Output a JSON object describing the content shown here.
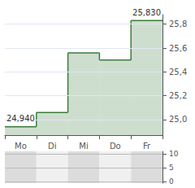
{
  "chart_data": [
    {
      "type": "step",
      "categories": [
        "Mo",
        "Di",
        "Mi",
        "Do",
        "Fr"
      ],
      "values": [
        24.94,
        25.06,
        25.56,
        25.5,
        25.83
      ],
      "color": "#3a7d3a",
      "ylim": [
        24.87,
        25.88
      ],
      "yticks": [
        {
          "value": 25.0,
          "label": "25,0"
        },
        {
          "value": 25.2,
          "label": "25,2"
        },
        {
          "value": 25.4,
          "label": "25,4"
        },
        {
          "value": 25.6,
          "label": "25,6"
        },
        {
          "value": 25.8,
          "label": "25,8"
        }
      ],
      "grid": true,
      "annotations": [
        {
          "text": "24,940",
          "x": "Mo",
          "y": 24.94
        },
        {
          "text": "25,830",
          "x": "Fr",
          "y": 25.83
        }
      ]
    },
    {
      "type": "bands",
      "ylim": [
        -0.5,
        11
      ],
      "yticks": [
        0,
        5,
        10
      ],
      "colors": [
        "#dcdcdc",
        "#f0f0f0",
        "#dcdcdc",
        "#f0f0f0",
        "#dcdcdc"
      ],
      "grid": true
    }
  ]
}
